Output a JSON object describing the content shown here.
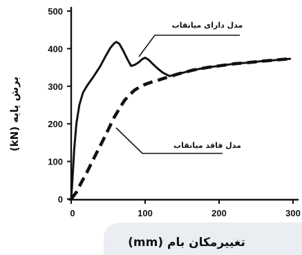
{
  "chart_data": {
    "type": "line",
    "xlabel": "تغییرمکان بام (mm)",
    "ylabel": "برش پایه (kN)",
    "xlim": [
      0,
      300
    ],
    "ylim": [
      0,
      500
    ],
    "xticks": [
      0,
      100,
      200,
      300
    ],
    "yticks": [
      0,
      100,
      200,
      300,
      400,
      500
    ],
    "grid": false,
    "series": [
      {
        "name": "مدل دارای میانقاب",
        "dashed": false,
        "color": "#111111",
        "x": [
          0,
          2,
          4,
          7,
          11,
          16,
          22,
          30,
          39,
          46,
          53,
          58,
          61,
          65,
          70,
          76,
          81,
          86,
          91,
          96,
          100,
          105,
          110,
          117,
          124,
          133,
          147,
          165,
          184,
          203,
          221,
          240,
          259,
          278,
          296
        ],
        "y": [
          0,
          60,
          130,
          200,
          250,
          283,
          303,
          325,
          352,
          378,
          402,
          414,
          418,
          413,
          396,
          372,
          354,
          357,
          363,
          372,
          376,
          370,
          360,
          347,
          336,
          327,
          334,
          343,
          350,
          355,
          360,
          363,
          367,
          370,
          373
        ]
      },
      {
        "name": "مدل فاقد میانقاب",
        "dashed": true,
        "color": "#111111",
        "x": [
          0,
          7,
          14,
          21,
          28,
          35,
          42,
          49,
          58,
          65,
          72,
          79,
          86,
          93,
          100,
          110,
          119,
          133,
          147,
          165,
          184,
          203,
          221,
          240,
          259,
          278,
          296
        ],
        "y": [
          0,
          18,
          45,
          70,
          98,
          125,
          152,
          180,
          217,
          240,
          262,
          277,
          290,
          298,
          305,
          312,
          317,
          326,
          334,
          343,
          350,
          355,
          360,
          363,
          367,
          370,
          373
        ]
      }
    ]
  }
}
